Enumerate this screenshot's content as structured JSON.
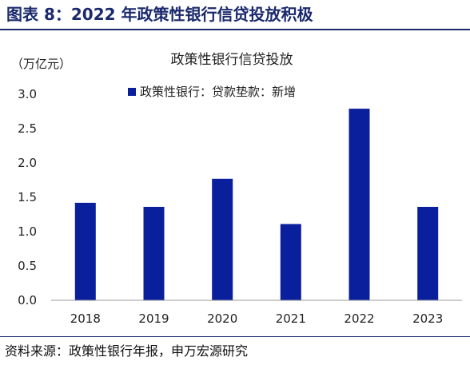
{
  "figure": {
    "title": "图表 8：2022 年政策性银行信贷投放积极",
    "source": "资料来源：政策性银行年报，申万宏源研究"
  },
  "chart_data": {
    "type": "bar",
    "title": "政策性银行信贷投放",
    "ylabel": "（万亿元）",
    "categories": [
      "2018",
      "2019",
      "2020",
      "2021",
      "2022",
      "2023"
    ],
    "series": [
      {
        "name": "政策性银行：贷款垫款：新增",
        "values": [
          1.42,
          1.36,
          1.77,
          1.11,
          2.79,
          1.36
        ]
      }
    ],
    "yticks": [
      "0.0",
      "0.5",
      "1.0",
      "1.5",
      "2.0",
      "2.5",
      "3.0"
    ],
    "ylim": [
      0,
      3.0
    ],
    "grid": false,
    "legend": "top-center",
    "bar_color": "#0a1f9c"
  }
}
